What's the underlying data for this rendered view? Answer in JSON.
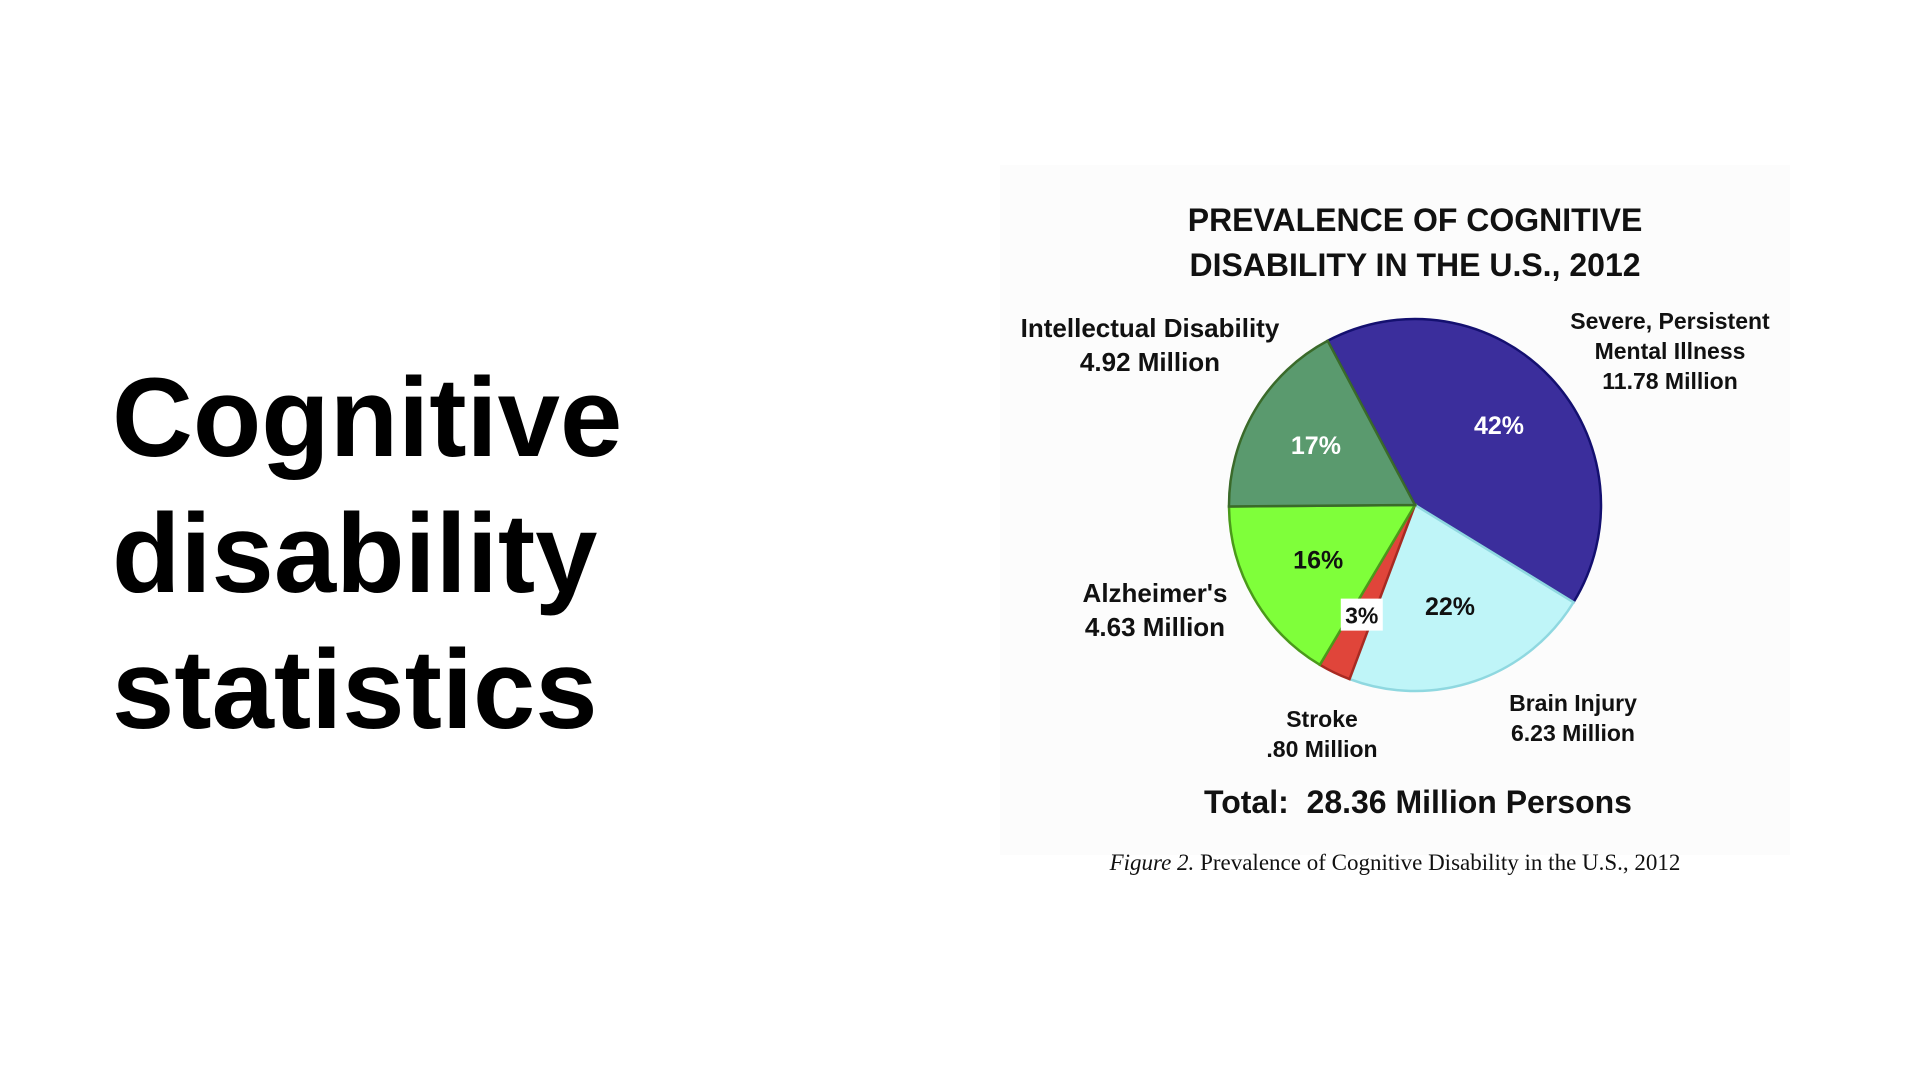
{
  "slide": {
    "title_lines": [
      "Cognitive",
      "disability",
      "statistics"
    ]
  },
  "caption": {
    "label": "Figure 2.",
    "text": "Prevalence of Cognitive Disability in the U.S., 2012"
  },
  "chart_data": {
    "type": "pie",
    "title_lines": [
      "PREVALENCE OF COGNITIVE",
      "DISABILITY IN THE U.S., 2012"
    ],
    "total_label": "Total:  28.36 Million Persons",
    "slices": [
      {
        "name_lines": [
          "Severe, Persistent",
          "Mental Illness",
          "11.78 Million"
        ],
        "category": "Severe, Persistent Mental Illness",
        "value": 11.78,
        "percent_label": "42%",
        "color": "#3b2e9c",
        "stroke": "#141070",
        "pct_color": "#ffffff"
      },
      {
        "name_lines": [
          "Brain Injury",
          "6.23 Million"
        ],
        "category": "Brain Injury",
        "value": 6.23,
        "percent_label": "22%",
        "color": "#bff5f8",
        "stroke": "#8fd8e0",
        "pct_color": "#111111"
      },
      {
        "name_lines": [
          "Stroke",
          ".80 Million"
        ],
        "category": "Stroke",
        "value": 0.8,
        "percent_label": "3%",
        "color": "#e0453a",
        "stroke": "#a82a22",
        "pct_color": "#111111"
      },
      {
        "name_lines": [
          "Alzheimer's",
          "4.63 Million"
        ],
        "category": "Alzheimer's",
        "value": 4.63,
        "percent_label": "16%",
        "color": "#7fff3a",
        "stroke": "#4a9a1a",
        "pct_color": "#111111"
      },
      {
        "name_lines": [
          "Intellectual Disability",
          "4.92 Million"
        ],
        "category": "Intellectual Disability",
        "value": 4.92,
        "percent_label": "17%",
        "color": "#5a9a6e",
        "stroke": "#3a6a2a",
        "pct_color": "#ffffff"
      }
    ]
  }
}
